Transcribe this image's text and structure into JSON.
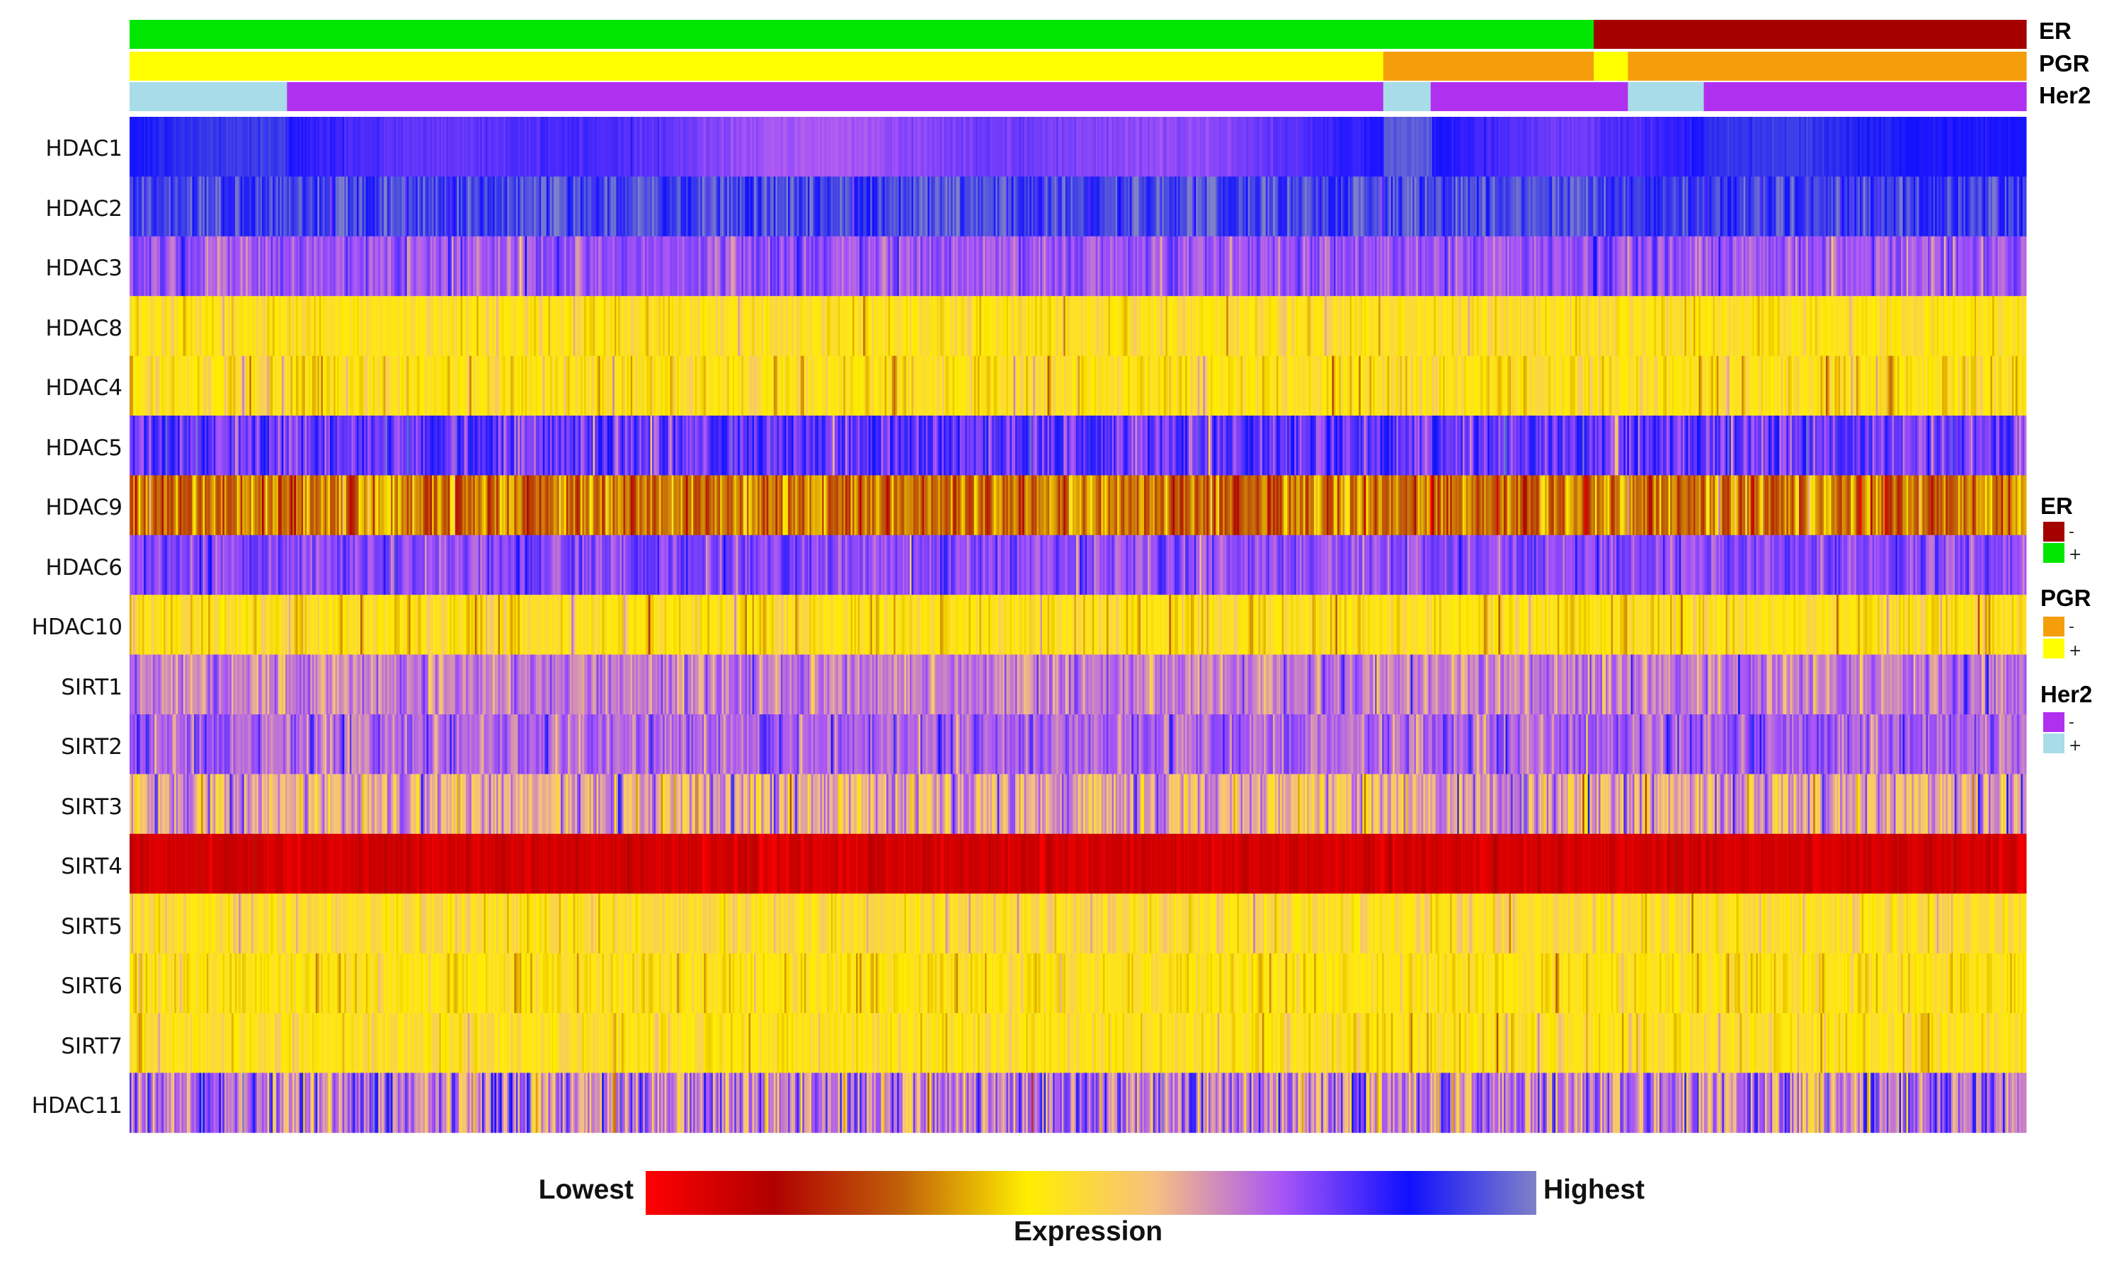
{
  "chart_data": {
    "type": "heatmap",
    "title": "",
    "n_samples": 1060,
    "color_scale": {
      "title": "Expression",
      "low_label": "Lowest",
      "high_label": "Highest",
      "stops": [
        "#ff0000",
        "#b00000",
        "#c0600a",
        "#ffee00",
        "#f6c080",
        "#a855f7",
        "#1010ff",
        "#8080c8"
      ]
    },
    "annotations": [
      {
        "name": "ER",
        "legend_title": "ER",
        "levels": [
          {
            "symbol": "-",
            "color": "#a50000"
          },
          {
            "symbol": "+",
            "color": "#00e600"
          }
        ],
        "segments": [
          {
            "value": "+",
            "start": 0.0,
            "end": 0.772
          },
          {
            "value": "-",
            "start": 0.772,
            "end": 1.0
          }
        ]
      },
      {
        "name": "PGR",
        "legend_title": "PGR",
        "levels": [
          {
            "symbol": "-",
            "color": "#f59e0b"
          },
          {
            "symbol": "+",
            "color": "#ffff00"
          }
        ],
        "segments": [
          {
            "value": "+",
            "start": 0.0,
            "end": 0.661
          },
          {
            "value": "-",
            "start": 0.661,
            "end": 0.772
          },
          {
            "value": "+",
            "start": 0.772,
            "end": 0.79
          },
          {
            "value": "-",
            "start": 0.79,
            "end": 1.0
          }
        ]
      },
      {
        "name": "Her2",
        "legend_title": "Her2",
        "levels": [
          {
            "symbol": "-",
            "color": "#b030f0"
          },
          {
            "symbol": "+",
            "color": "#a8dce8"
          }
        ],
        "segments": [
          {
            "value": "+",
            "start": 0.0,
            "end": 0.083
          },
          {
            "value": "-",
            "start": 0.083,
            "end": 0.661
          },
          {
            "value": "+",
            "start": 0.661,
            "end": 0.686
          },
          {
            "value": "-",
            "start": 0.686,
            "end": 0.772
          },
          {
            "value": "-",
            "start": 0.772,
            "end": 0.79
          },
          {
            "value": "+",
            "start": 0.79,
            "end": 0.83
          },
          {
            "value": "-",
            "start": 0.83,
            "end": 1.0
          }
        ]
      }
    ],
    "rows": [
      {
        "gene": "HDAC1",
        "mean": 0.84,
        "spread": 0.05,
        "pattern": "smooth"
      },
      {
        "gene": "HDAC2",
        "mean": 0.92,
        "spread": 0.06,
        "pattern": "noisy"
      },
      {
        "gene": "HDAC3",
        "mean": 0.72,
        "spread": 0.05,
        "pattern": "noisy"
      },
      {
        "gene": "HDAC8",
        "mean": 0.46,
        "spread": 0.05,
        "pattern": "noisy"
      },
      {
        "gene": "HDAC4",
        "mean": 0.45,
        "spread": 0.06,
        "pattern": "noisy"
      },
      {
        "gene": "HDAC5",
        "mean": 0.78,
        "spread": 0.07,
        "pattern": "noisy"
      },
      {
        "gene": "HDAC9",
        "mean": 0.3,
        "spread": 0.09,
        "pattern": "noisy"
      },
      {
        "gene": "HDAC6",
        "mean": 0.74,
        "spread": 0.05,
        "pattern": "noisy"
      },
      {
        "gene": "HDAC10",
        "mean": 0.45,
        "spread": 0.06,
        "pattern": "noisy"
      },
      {
        "gene": "SIRT1",
        "mean": 0.66,
        "spread": 0.06,
        "pattern": "noisy"
      },
      {
        "gene": "SIRT2",
        "mean": 0.7,
        "spread": 0.06,
        "pattern": "noisy"
      },
      {
        "gene": "SIRT3",
        "mean": 0.6,
        "spread": 0.1,
        "pattern": "noisy"
      },
      {
        "gene": "SIRT4",
        "mean": 0.08,
        "spread": 0.03,
        "pattern": "noisy"
      },
      {
        "gene": "SIRT5",
        "mean": 0.48,
        "spread": 0.05,
        "pattern": "noisy"
      },
      {
        "gene": "SIRT6",
        "mean": 0.44,
        "spread": 0.05,
        "pattern": "noisy"
      },
      {
        "gene": "SIRT7",
        "mean": 0.46,
        "spread": 0.05,
        "pattern": "noisy"
      },
      {
        "gene": "HDAC11",
        "mean": 0.66,
        "spread": 0.12,
        "pattern": "noisy"
      }
    ]
  }
}
